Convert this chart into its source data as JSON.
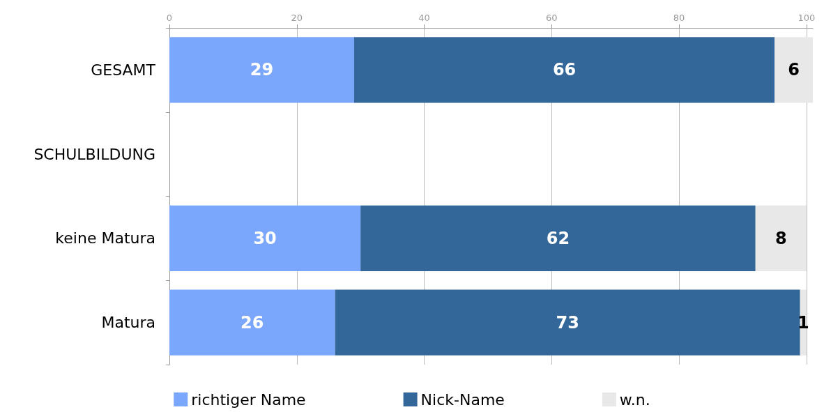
{
  "chart_data": {
    "type": "bar",
    "orientation": "horizontal",
    "stacked": true,
    "data_labels": true,
    "categories": [
      "GESAMT",
      "SCHULBILDUNG",
      "keine Matura",
      "Matura"
    ],
    "series": [
      {
        "name": "richtiger Name",
        "color": "#7aa6fb",
        "values": [
          29,
          null,
          30,
          26
        ]
      },
      {
        "name": "Nick-Name",
        "color": "#336699",
        "values": [
          66,
          null,
          62,
          73
        ]
      },
      {
        "name": "w.n.",
        "color": "#e8e8e8",
        "values": [
          6,
          null,
          8,
          1
        ]
      }
    ],
    "xlim": [
      0,
      101
    ],
    "xticks": [
      0,
      20,
      40,
      60,
      80,
      100
    ],
    "grid": "x",
    "legend": "bottom"
  }
}
